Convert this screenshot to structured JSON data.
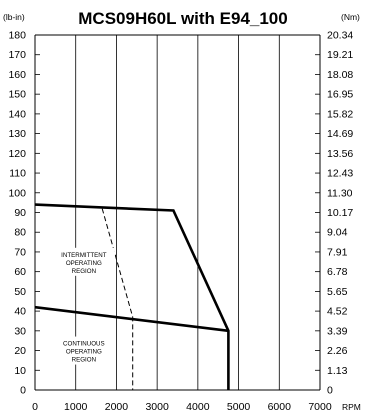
{
  "chart_data": {
    "type": "line",
    "title": "MCS09H60L with E94_100",
    "left_unit": "(lb-in)",
    "right_unit": "(Nm)",
    "x_unit": "RPM",
    "xlim": [
      0,
      7000
    ],
    "ylim": [
      0,
      180
    ],
    "x_ticks": [
      0,
      1000,
      2000,
      3000,
      4000,
      5000,
      6000,
      7000
    ],
    "x_tick_labels": [
      "0",
      "1000",
      "2000",
      "3000",
      "4000",
      "5000",
      "6000",
      "7000"
    ],
    "y_ticks": [
      0,
      10,
      20,
      30,
      40,
      50,
      60,
      70,
      80,
      90,
      100,
      110,
      120,
      130,
      140,
      150,
      160,
      170,
      180
    ],
    "y_tick_labels": [
      "0",
      "10",
      "20",
      "30",
      "40",
      "50",
      "60",
      "70",
      "80",
      "90",
      "100",
      "110",
      "120",
      "130",
      "140",
      "150",
      "160",
      "170",
      "180"
    ],
    "right_tick_labels": [
      "0",
      "1.13",
      "2.26",
      "3.39",
      "4.52",
      "5.65",
      "6.78",
      "7.91",
      "9.04",
      "10.17",
      "11.30",
      "12.43",
      "13.56",
      "14.69",
      "15.82",
      "16.95",
      "18.08",
      "19.21",
      "20.34"
    ],
    "grid": "vertical-only",
    "series": [
      {
        "style": "solid",
        "points": [
          [
            0,
            94
          ],
          [
            3400,
            91
          ],
          [
            4750,
            30
          ],
          [
            4750,
            0
          ]
        ]
      },
      {
        "style": "solid",
        "points": [
          [
            0,
            42
          ],
          [
            4750,
            30
          ]
        ]
      },
      {
        "style": "dashed",
        "points": [
          [
            1650,
            92
          ],
          [
            2400,
            37
          ],
          [
            2400,
            0
          ]
        ]
      }
    ],
    "annotations": [
      {
        "lines": [
          "INTERMITTENT",
          "OPERATING",
          "REGION"
        ],
        "x": 1200,
        "y": 65
      },
      {
        "lines": [
          "CONTINUOUS",
          "OPERATING",
          "REGION"
        ],
        "x": 1200,
        "y": 20
      }
    ]
  }
}
